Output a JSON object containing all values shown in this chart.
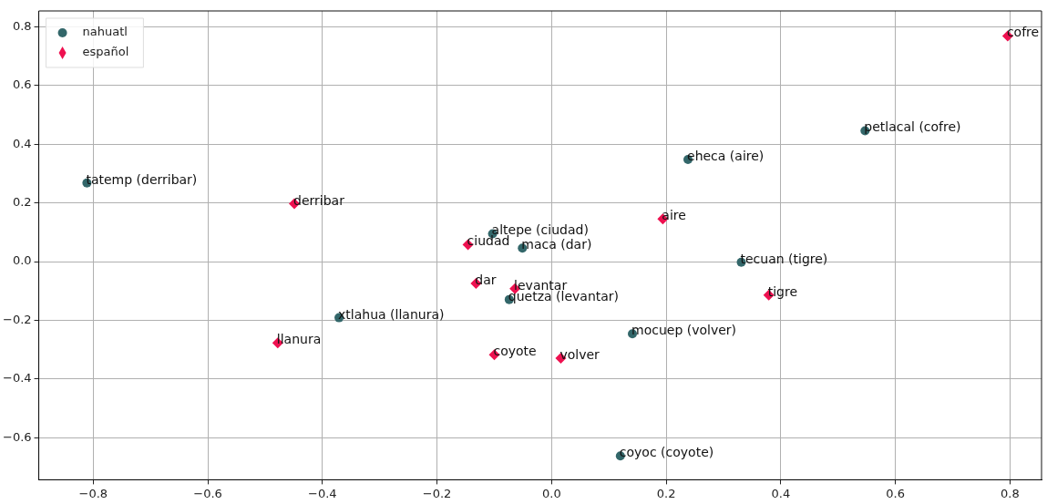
{
  "chart_data": {
    "type": "scatter",
    "legend": "top left",
    "grid": true,
    "xlim": [
      -0.895,
      0.855
    ],
    "ylim": [
      -0.743,
      0.854
    ],
    "xticks": [
      {
        "value": -0.8,
        "label": "−0.8"
      },
      {
        "value": -0.6,
        "label": "−0.6"
      },
      {
        "value": -0.4,
        "label": "−0.4"
      },
      {
        "value": -0.2,
        "label": "−0.2"
      },
      {
        "value": 0,
        "label": "0.0"
      },
      {
        "value": 0.2,
        "label": "0.2"
      },
      {
        "value": 0.4,
        "label": "0.4"
      },
      {
        "value": 0.6,
        "label": "0.6"
      },
      {
        "value": 0.8,
        "label": "0.8"
      }
    ],
    "yticks": [
      {
        "value": -0.6,
        "label": "−0.6"
      },
      {
        "value": -0.4,
        "label": "−0.4"
      },
      {
        "value": -0.2,
        "label": "−0.2"
      },
      {
        "value": 0,
        "label": "0.0"
      },
      {
        "value": 0.2,
        "label": "0.2"
      },
      {
        "value": 0.4,
        "label": "0.4"
      },
      {
        "value": 0.6,
        "label": "0.6"
      },
      {
        "value": 0.8,
        "label": "0.8"
      }
    ],
    "series": [
      {
        "name": "nahuatl",
        "color": "#33676a",
        "marker": "circle",
        "x": [
          -0.811,
          -0.103,
          -0.051,
          0.547,
          0.238,
          -0.074,
          -0.371,
          0.331,
          0.141,
          0.12
        ],
        "values": [
          0.268,
          0.095,
          0.046,
          0.446,
          0.348,
          -0.129,
          -0.191,
          -0.002,
          -0.246,
          -0.662
        ]
      },
      {
        "name": "español",
        "color": "#ee1150",
        "marker": "diamond",
        "x": [
          -0.449,
          -0.146,
          0.796,
          0.194,
          -0.132,
          -0.064,
          -0.478,
          -0.1,
          0.379,
          0.016
        ],
        "values": [
          0.197,
          0.058,
          0.769,
          0.145,
          -0.074,
          -0.092,
          -0.277,
          -0.317,
          -0.114,
          -0.329
        ]
      }
    ],
    "annotations": [
      {
        "text": "tatemp (derribar)",
        "x": -0.811,
        "y": 0.268
      },
      {
        "text": "altepe (ciudad)",
        "x": -0.103,
        "y": 0.095
      },
      {
        "text": "maca (dar)",
        "x": -0.051,
        "y": 0.046
      },
      {
        "text": "petlacal (cofre)",
        "x": 0.547,
        "y": 0.446
      },
      {
        "text": "eheca (aire)",
        "x": 0.238,
        "y": 0.348
      },
      {
        "text": "quetza (levantar)",
        "x": -0.074,
        "y": -0.129
      },
      {
        "text": "xtlahua (llanura)",
        "x": -0.371,
        "y": -0.191
      },
      {
        "text": "tecuan (tigre)",
        "x": 0.331,
        "y": -0.002
      },
      {
        "text": "mocuep (volver)",
        "x": 0.141,
        "y": -0.246
      },
      {
        "text": "coyoc (coyote)",
        "x": 0.12,
        "y": -0.662
      },
      {
        "text": "derribar",
        "x": -0.449,
        "y": 0.197
      },
      {
        "text": "ciudad",
        "x": -0.146,
        "y": 0.058
      },
      {
        "text": "cofre",
        "x": 0.796,
        "y": 0.769
      },
      {
        "text": "aire",
        "x": 0.194,
        "y": 0.145
      },
      {
        "text": "dar",
        "x": -0.132,
        "y": -0.074
      },
      {
        "text": "levantar",
        "x": -0.064,
        "y": -0.092
      },
      {
        "text": "llanura",
        "x": -0.478,
        "y": -0.277
      },
      {
        "text": "coyote",
        "x": -0.1,
        "y": -0.317
      },
      {
        "text": "tigre",
        "x": 0.379,
        "y": -0.114
      },
      {
        "text": "volver",
        "x": 0.016,
        "y": -0.329
      }
    ]
  }
}
